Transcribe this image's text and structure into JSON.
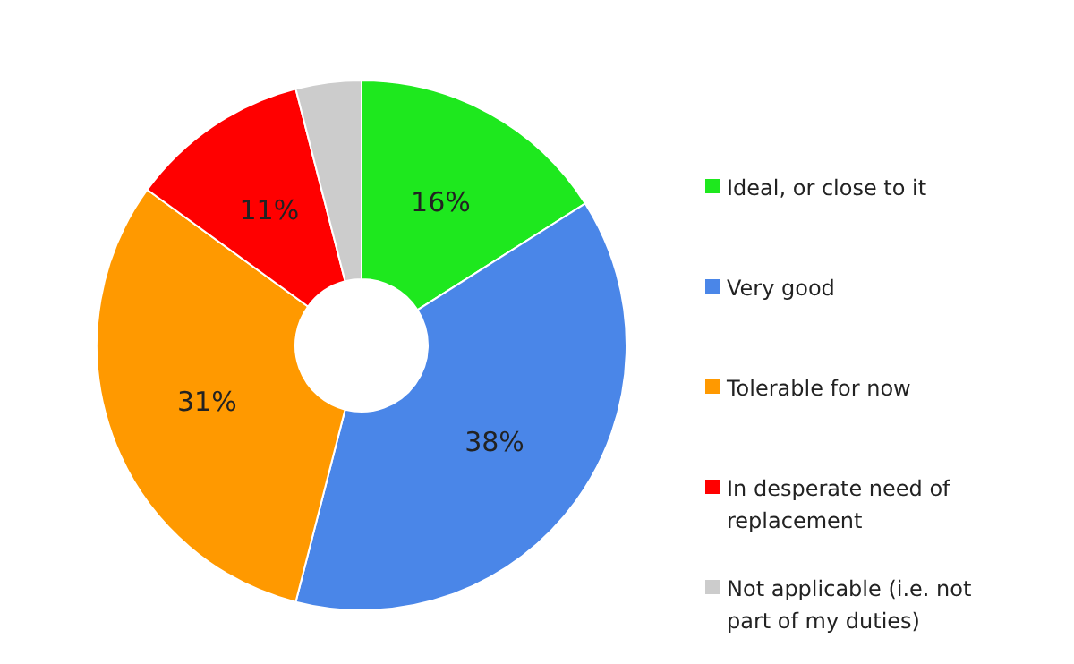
{
  "chart_data": {
    "type": "donut",
    "categories": [
      "Ideal, or close to it",
      "Very good",
      "Tolerable for now",
      "In desperate need of replacement",
      "Not applicable (i.e. not part of my duties)"
    ],
    "values": [
      16,
      38,
      31,
      11,
      4
    ],
    "colors": [
      "#1ee81e",
      "#4a86e8",
      "#ff9900",
      "#ff0000",
      "#cccccc"
    ],
    "value_labels": [
      "16%",
      "38%",
      "31%",
      "11%",
      null
    ],
    "legend": "right"
  }
}
